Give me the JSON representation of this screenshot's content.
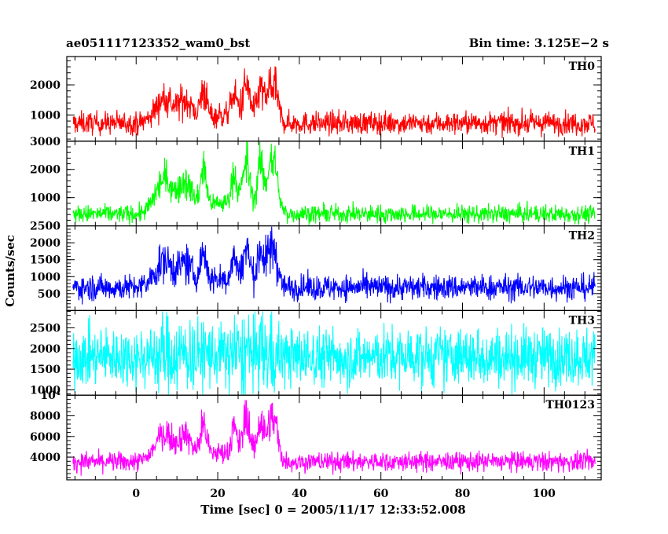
{
  "title": "ae051117123352_wam0_bst",
  "bin_time": "Bin time: 3.125E−2 s",
  "chart_data": [
    {
      "type": "line",
      "name": "TH0",
      "color": "#ff0000",
      "ylim": [
        130,
        2940
      ],
      "yticks": [
        1000,
        2000
      ],
      "ytick_labels": [
        "1000",
        "2000"
      ]
    },
    {
      "type": "line",
      "name": "TH1",
      "color": "#00ff00",
      "ylim": [
        0,
        3000
      ],
      "yticks": [
        1000,
        2000,
        3000
      ],
      "ytick_labels": [
        "1000",
        "2000",
        "3000"
      ]
    },
    {
      "type": "line",
      "name": "TH2",
      "color": "#0000ff",
      "ylim": [
        0,
        2500
      ],
      "yticks": [
        500,
        1000,
        1500,
        2000,
        2500
      ],
      "ytick_labels": [
        "500",
        "1000",
        "1500",
        "2000",
        "2500"
      ]
    },
    {
      "type": "line",
      "name": "TH3",
      "color": "#00ffff",
      "ylim": [
        870,
        2920
      ],
      "yticks": [
        1000,
        1500,
        2000,
        2500
      ],
      "ytick_labels": [
        "1000",
        "1500",
        "2000",
        "2500"
      ]
    },
    {
      "type": "line",
      "name": "TH0123",
      "color": "#ff00ff",
      "ylim": [
        1800,
        10000
      ],
      "yticks": [
        4000,
        6000,
        8000,
        10000
      ],
      "ytick_labels": [
        "4000",
        "6000",
        "8000",
        "10⁴"
      ]
    }
  ],
  "x_axis": {
    "xlim": [
      -17,
      114
    ],
    "ticks": [
      0,
      20,
      40,
      60,
      80,
      100
    ],
    "tick_labels": [
      "0",
      "20",
      "40",
      "60",
      "80",
      "100"
    ],
    "label": "Time [sec] 0 = 2005/11/17 12:33:52.008"
  },
  "y_axis_label": "Counts/sec",
  "x_range": [
    -15.5,
    112.5
  ],
  "burst": {
    "start": 1,
    "end": 37,
    "peaks": [
      {
        "t": 33.5,
        "amp": 1.0,
        "w": 1.6
      },
      {
        "t": 30.5,
        "amp": 0.8,
        "w": 1.0
      },
      {
        "t": 27,
        "amp": 0.85,
        "w": 1.2
      },
      {
        "t": 24,
        "amp": 0.6,
        "w": 1.0
      },
      {
        "t": 16.5,
        "amp": 0.75,
        "w": 1.0
      },
      {
        "t": 12,
        "amp": 0.45,
        "w": 2.0
      },
      {
        "t": 7,
        "amp": 0.5,
        "w": 2.5
      }
    ]
  },
  "series_levels": [
    {
      "base": 730,
      "noise": 190,
      "burst": 1500
    },
    {
      "base": 420,
      "noise": 160,
      "burst": 2200
    },
    {
      "base": 680,
      "noise": 190,
      "burst": 1400
    },
    {
      "base": 1800,
      "noise": 360,
      "burst": 120
    },
    {
      "base": 3550,
      "noise": 480,
      "burst": 5000
    }
  ]
}
